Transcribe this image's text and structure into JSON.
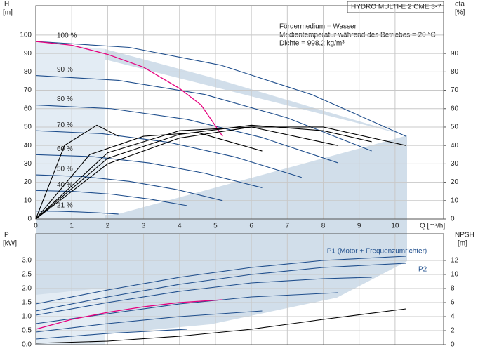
{
  "chart_data": [
    {
      "type": "line",
      "title": "HYDRO MULTI-E 2 CME 3-7",
      "annotations": [
        "Fördermedium = Wasser",
        "Medientemperatur während des Betriebes = 20 °C",
        "Dichte = 998.2 kg/m³"
      ],
      "xlabel": "Q [m³/h]",
      "ylabel": [
        "H",
        "[m]"
      ],
      "y2label": [
        "eta",
        "[%]"
      ],
      "xlim": [
        0,
        11.35
      ],
      "xticks": [
        0,
        1,
        2,
        3,
        4,
        5,
        6,
        7,
        8,
        9,
        10
      ],
      "ylim": [
        0,
        116
      ],
      "yticks": [
        0,
        10,
        20,
        30,
        40,
        50,
        60,
        70,
        80,
        90,
        100
      ],
      "y2lim": [
        0,
        116
      ],
      "y2ticks": [
        0,
        10,
        20,
        30,
        40,
        50,
        60,
        70,
        80,
        90
      ],
      "grid": true,
      "series": [
        {
          "name": "100 %",
          "color": "#1f4e8c",
          "x": [
            0,
            2.6,
            5.15,
            7.7,
            10.3
          ],
          "values": [
            96.5,
            93.3,
            83.6,
            67.5,
            45
          ]
        },
        {
          "name": "90 %",
          "color": "#1f4e8c",
          "x": [
            0,
            2.3,
            4.7,
            7.0,
            9.35
          ],
          "values": [
            78,
            75.4,
            67.7,
            55,
            37
          ]
        },
        {
          "name": "80 %",
          "color": "#1f4e8c",
          "x": [
            0,
            2.1,
            4.2,
            6.3,
            8.4
          ],
          "values": [
            62,
            60,
            54.2,
            44.3,
            30.6
          ]
        },
        {
          "name": "70 %",
          "color": "#1f4e8c",
          "x": [
            0,
            1.85,
            3.7,
            5.55,
            7.4
          ],
          "values": [
            48,
            46.4,
            41.7,
            33.7,
            22.6
          ]
        },
        {
          "name": "60 %",
          "color": "#1f4e8c",
          "x": [
            0,
            1.6,
            3.15,
            4.7,
            6.3
          ],
          "values": [
            35,
            33.9,
            30.5,
            24.9,
            17
          ]
        },
        {
          "name": "50 %",
          "color": "#1f4e8c",
          "x": [
            0,
            1.3,
            2.6,
            3.9,
            5.2
          ],
          "values": [
            24,
            23.1,
            20.5,
            16.1,
            10
          ]
        },
        {
          "name": "40 %",
          "color": "#1f4e8c",
          "x": [
            0,
            1.05,
            2.1,
            3.15,
            4.2
          ],
          "values": [
            15.5,
            15,
            13.5,
            10.9,
            7.3
          ]
        },
        {
          "name": "21 %",
          "color": "#1f4e8c",
          "x": [
            0,
            0.6,
            1.15,
            1.7,
            2.3
          ],
          "values": [
            4.3,
            4.2,
            3.9,
            3.4,
            2.7
          ]
        },
        {
          "color": "#e6007e",
          "x": [
            0,
            1,
            2,
            3,
            4,
            4.6,
            5.2
          ],
          "values": [
            96.5,
            94.5,
            89.5,
            82.5,
            71,
            62,
            45
          ]
        },
        {
          "color": "#000000",
          "axis": "y2",
          "x": [
            0,
            2,
            4,
            6,
            8,
            10.3
          ],
          "values": [
            0,
            30,
            44,
            50,
            50,
            40
          ]
        },
        {
          "color": "#000000",
          "axis": "y2",
          "x": [
            0,
            2,
            4,
            6,
            8,
            9.35
          ],
          "values": [
            0,
            33,
            46,
            51,
            48,
            42
          ]
        },
        {
          "color": "#000000",
          "axis": "y2",
          "x": [
            0,
            2,
            4,
            6,
            8.4
          ],
          "values": [
            0,
            36,
            48,
            50,
            40
          ]
        },
        {
          "color": "#000000",
          "axis": "y2",
          "x": [
            0,
            1.5,
            3,
            4.5,
            6.3
          ],
          "values": [
            0,
            35,
            45,
            47,
            37
          ]
        },
        {
          "color": "#000000",
          "axis": "y2",
          "x": [
            0,
            0.8,
            1.7,
            2.3
          ],
          "values": [
            0,
            40,
            51,
            45
          ]
        }
      ]
    },
    {
      "type": "line",
      "ylabel": [
        "P",
        "[kW]"
      ],
      "y2label": [
        "NPSH",
        "[m]"
      ],
      "xlim": [
        0,
        11.35
      ],
      "ylim": [
        0,
        3.95
      ],
      "yticks": [
        {
          "value": 0,
          "label": "0.0"
        },
        0.5,
        {
          "value": 1,
          "label": "1.0"
        },
        1.5,
        {
          "value": 2,
          "label": "2.0"
        },
        2.5,
        {
          "value": 3,
          "label": "3.0"
        }
      ],
      "y2lim": [
        0,
        15.8
      ],
      "y2ticks": [
        0,
        2,
        4,
        6,
        8,
        10,
        12
      ],
      "grid": true,
      "series": [
        {
          "name": "P1 (Motor + Frequenzumrichter)",
          "color": "#1f4e8c",
          "x": [
            0,
            2,
            4,
            6,
            8,
            10.3
          ],
          "values": [
            1.45,
            1.95,
            2.4,
            2.75,
            3.0,
            3.15
          ]
        },
        {
          "name": "P2",
          "color": "#1f4e8c",
          "x": [
            0,
            2,
            4,
            6,
            8,
            10.3
          ],
          "values": [
            1.2,
            1.7,
            2.15,
            2.5,
            2.75,
            2.9
          ]
        },
        {
          "color": "#1f4e8c",
          "x": [
            0,
            2,
            4,
            6,
            8,
            9.35
          ],
          "values": [
            1.05,
            1.5,
            1.9,
            2.2,
            2.35,
            2.4
          ]
        },
        {
          "color": "#1f4e8c",
          "x": [
            0,
            2,
            4,
            6,
            8.4
          ],
          "values": [
            0.75,
            1.1,
            1.45,
            1.7,
            1.85
          ]
        },
        {
          "color": "#1f4e8c",
          "x": [
            0,
            2,
            4,
            6.3
          ],
          "values": [
            0.45,
            0.75,
            1.0,
            1.2
          ]
        },
        {
          "color": "#1f4e8c",
          "x": [
            0,
            2,
            4.2
          ],
          "values": [
            0.2,
            0.4,
            0.55
          ]
        },
        {
          "color": "#e6007e",
          "x": [
            0,
            1,
            2,
            3,
            4,
            5.2
          ],
          "values": [
            0.55,
            0.9,
            1.15,
            1.35,
            1.5,
            1.6
          ]
        },
        {
          "color": "#000000",
          "axis": "y2",
          "x": [
            0,
            2,
            4,
            6,
            8,
            10.3
          ],
          "values": [
            0.2,
            0.5,
            1.2,
            2.2,
            3.6,
            5.1
          ]
        }
      ]
    }
  ]
}
